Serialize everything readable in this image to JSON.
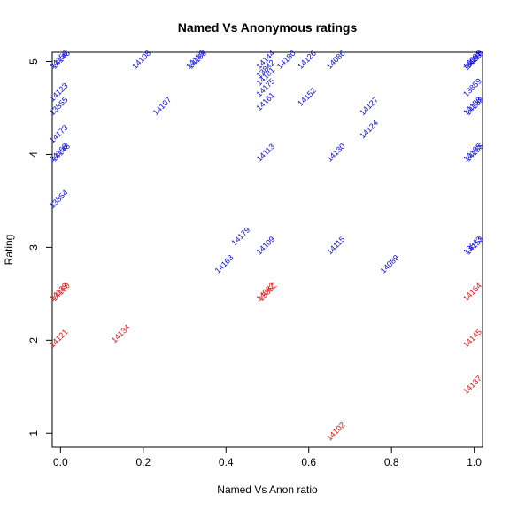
{
  "chart_data": {
    "type": "scatter",
    "title": "Named Vs Anonymous ratings",
    "xlabel": "Named Vs Anon ratio",
    "ylabel": "Rating",
    "xlim": [
      -0.02,
      1.02
    ],
    "ylim": [
      0.85,
      5.1
    ],
    "xticks": [
      0.0,
      0.2,
      0.4,
      0.6,
      0.8,
      1.0
    ],
    "xtick_labels": [
      "0.0",
      "0.2",
      "0.4",
      "0.6",
      "0.8",
      "1.0"
    ],
    "yticks": [
      1,
      2,
      3,
      4,
      5
    ],
    "ytick_labels": [
      "1",
      "2",
      "3",
      "4",
      "5"
    ],
    "grid": false,
    "label_rotation_deg": 45,
    "colors": {
      "high": "#0000ff",
      "low": "#ff0000"
    },
    "points": [
      {
        "x": 0.0,
        "y": 5.0,
        "label": "14156",
        "color": "#0000ff"
      },
      {
        "x": 0.005,
        "y": 5.0,
        "label": "14146",
        "color": "#0000ff"
      },
      {
        "x": 0.2,
        "y": 5.0,
        "label": "14108",
        "color": "#0000ff"
      },
      {
        "x": 0.33,
        "y": 5.0,
        "label": "14159",
        "color": "#0000ff"
      },
      {
        "x": 0.335,
        "y": 5.0,
        "label": "14169",
        "color": "#0000ff"
      },
      {
        "x": 0.5,
        "y": 5.0,
        "label": "14144",
        "color": "#0000ff"
      },
      {
        "x": 0.5,
        "y": 4.9,
        "label": "13842",
        "color": "#0000ff"
      },
      {
        "x": 0.5,
        "y": 4.82,
        "label": "14181",
        "color": "#0000ff"
      },
      {
        "x": 0.5,
        "y": 4.7,
        "label": "14175",
        "color": "#0000ff"
      },
      {
        "x": 0.5,
        "y": 4.55,
        "label": "14161",
        "color": "#0000ff"
      },
      {
        "x": 0.55,
        "y": 5.0,
        "label": "14180",
        "color": "#0000ff"
      },
      {
        "x": 0.6,
        "y": 5.0,
        "label": "14126",
        "color": "#0000ff"
      },
      {
        "x": 0.6,
        "y": 4.6,
        "label": "14152",
        "color": "#0000ff"
      },
      {
        "x": 0.67,
        "y": 5.0,
        "label": "14086",
        "color": "#0000ff"
      },
      {
        "x": 1.0,
        "y": 5.0,
        "label": "14098",
        "color": "#0000ff"
      },
      {
        "x": 1.0,
        "y": 4.98,
        "label": "14099",
        "color": "#0000ff"
      },
      {
        "x": 1.005,
        "y": 5.0,
        "label": "14110",
        "color": "#0000ff"
      },
      {
        "x": 1.0,
        "y": 4.7,
        "label": "13859",
        "color": "#0000ff"
      },
      {
        "x": 0.0,
        "y": 4.65,
        "label": "14123",
        "color": "#0000ff"
      },
      {
        "x": 0.0,
        "y": 4.5,
        "label": "13855",
        "color": "#0000ff"
      },
      {
        "x": 0.25,
        "y": 4.5,
        "label": "14107",
        "color": "#0000ff"
      },
      {
        "x": 0.75,
        "y": 4.5,
        "label": "14127",
        "color": "#0000ff"
      },
      {
        "x": 1.0,
        "y": 4.5,
        "label": "14158",
        "color": "#0000ff"
      },
      {
        "x": 1.005,
        "y": 4.5,
        "label": "14138",
        "color": "#0000ff"
      },
      {
        "x": 0.0,
        "y": 4.2,
        "label": "14173",
        "color": "#0000ff"
      },
      {
        "x": 0.75,
        "y": 4.25,
        "label": "14124",
        "color": "#0000ff"
      },
      {
        "x": 0.0,
        "y": 4.0,
        "label": "14168",
        "color": "#0000ff"
      },
      {
        "x": 0.005,
        "y": 4.0,
        "label": "14148",
        "color": "#0000ff"
      },
      {
        "x": 0.5,
        "y": 4.0,
        "label": "14113",
        "color": "#0000ff"
      },
      {
        "x": 0.67,
        "y": 4.0,
        "label": "14130",
        "color": "#0000ff"
      },
      {
        "x": 1.0,
        "y": 4.0,
        "label": "14165",
        "color": "#0000ff"
      },
      {
        "x": 1.005,
        "y": 4.0,
        "label": "14155",
        "color": "#0000ff"
      },
      {
        "x": 0.0,
        "y": 3.5,
        "label": "13854",
        "color": "#0000ff"
      },
      {
        "x": 0.44,
        "y": 3.1,
        "label": "14179",
        "color": "#0000ff"
      },
      {
        "x": 0.5,
        "y": 3.0,
        "label": "14109",
        "color": "#0000ff"
      },
      {
        "x": 0.67,
        "y": 3.0,
        "label": "14115",
        "color": "#0000ff"
      },
      {
        "x": 1.0,
        "y": 3.0,
        "label": "13843",
        "color": "#0000ff"
      },
      {
        "x": 1.005,
        "y": 3.0,
        "label": "14153",
        "color": "#0000ff"
      },
      {
        "x": 0.4,
        "y": 2.8,
        "label": "14163",
        "color": "#0000ff"
      },
      {
        "x": 0.8,
        "y": 2.8,
        "label": "14089",
        "color": "#0000ff"
      },
      {
        "x": 0.0,
        "y": 2.5,
        "label": "14139",
        "color": "#ff0000"
      },
      {
        "x": 0.005,
        "y": 2.5,
        "label": "14150",
        "color": "#ff0000"
      },
      {
        "x": 0.5,
        "y": 2.5,
        "label": "14082",
        "color": "#ff0000"
      },
      {
        "x": 0.505,
        "y": 2.5,
        "label": "13852",
        "color": "#ff0000"
      },
      {
        "x": 1.0,
        "y": 2.5,
        "label": "14164",
        "color": "#ff0000"
      },
      {
        "x": 0.0,
        "y": 2.0,
        "label": "14121",
        "color": "#ff0000"
      },
      {
        "x": 0.15,
        "y": 2.05,
        "label": "14134",
        "color": "#ff0000"
      },
      {
        "x": 1.0,
        "y": 2.0,
        "label": "14145",
        "color": "#ff0000"
      },
      {
        "x": 1.0,
        "y": 1.5,
        "label": "14137",
        "color": "#ff0000"
      },
      {
        "x": 0.67,
        "y": 1.0,
        "label": "14102",
        "color": "#ff0000"
      }
    ]
  }
}
